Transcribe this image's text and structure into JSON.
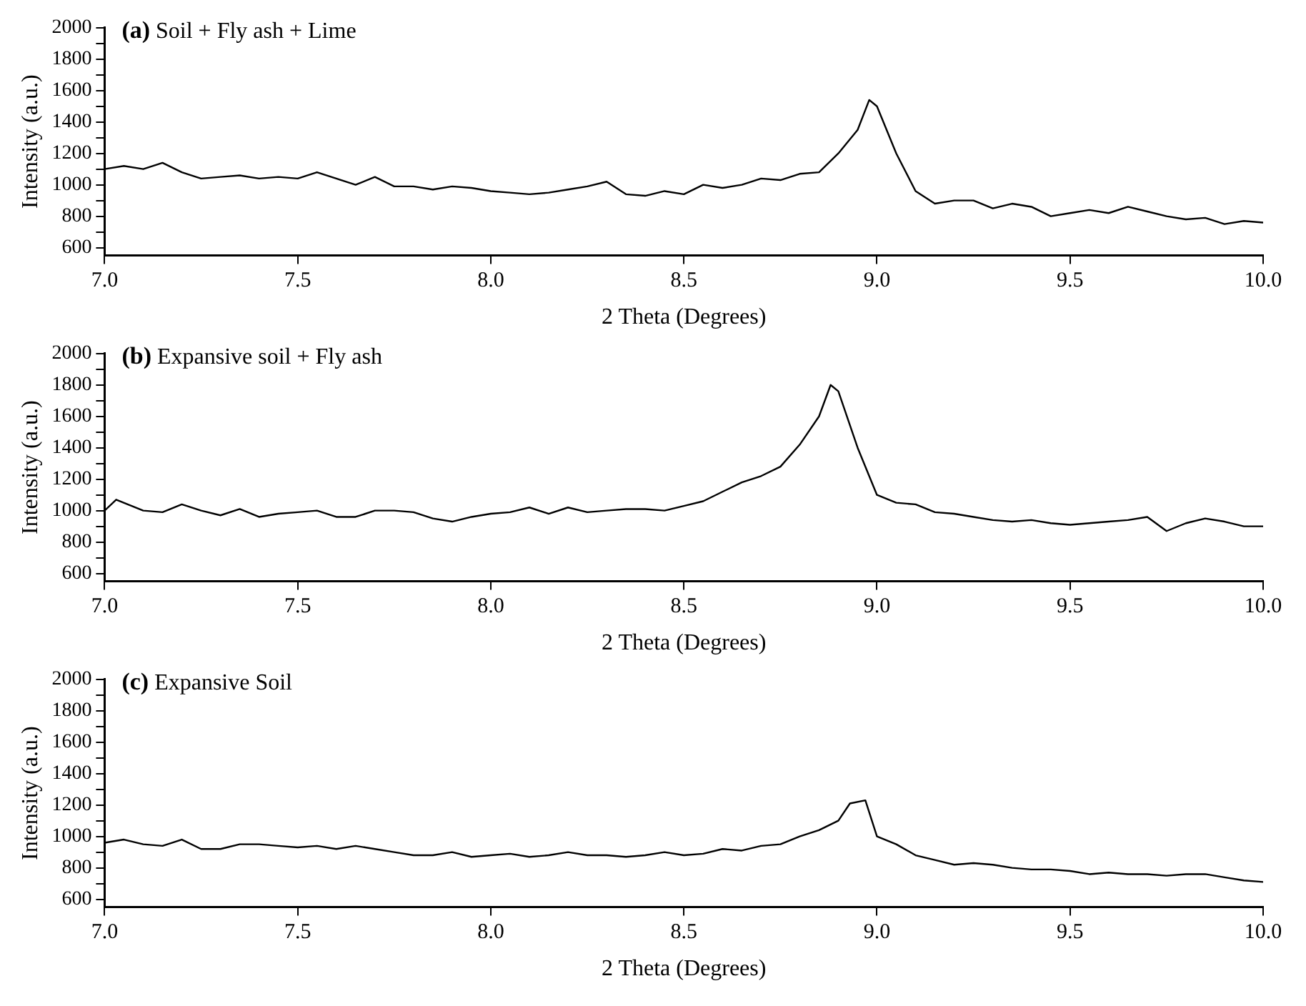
{
  "chart_data": [
    {
      "type": "line",
      "title": "(a) Soil + Fly ash + Lime",
      "xlabel": "2 Theta (Degrees)",
      "ylabel": "Intensity (a.u.)",
      "grid": false,
      "legend": false,
      "marker": "none",
      "line_style": "solid",
      "xlim": [
        7.0,
        10.0
      ],
      "xticks": [
        {
          "value": 7,
          "label": "7.0"
        },
        7.5,
        {
          "value": 8,
          "label": "8.0"
        },
        8.5,
        {
          "value": 9,
          "label": "9.0"
        },
        9.5,
        {
          "value": 10,
          "label": "10.0"
        }
      ],
      "ylim": [
        550,
        2000
      ],
      "yticks": [
        600,
        {
          "value": 700,
          "label": null
        },
        800,
        {
          "value": 900,
          "label": null
        },
        1000,
        {
          "value": 1100,
          "label": null
        },
        1200,
        {
          "value": 1300,
          "label": null
        },
        1400,
        {
          "value": 1500,
          "label": null
        },
        1600,
        {
          "value": 1700,
          "label": null
        },
        1800,
        {
          "value": 1900,
          "label": null
        },
        2000
      ],
      "series": [
        {
          "color": "#000000",
          "x": [
            7.0,
            7.05,
            7.1,
            7.15,
            7.2,
            7.25,
            7.3,
            7.35,
            7.4,
            7.45,
            7.5,
            7.55,
            7.6,
            7.65,
            7.7,
            7.75,
            7.8,
            7.85,
            7.9,
            7.95,
            8.0,
            8.05,
            8.1,
            8.15,
            8.2,
            8.25,
            8.3,
            8.35,
            8.4,
            8.45,
            8.5,
            8.55,
            8.6,
            8.65,
            8.7,
            8.75,
            8.8,
            8.85,
            8.9,
            8.95,
            8.98,
            9.0,
            9.05,
            9.1,
            9.15,
            9.2,
            9.25,
            9.3,
            9.35,
            9.4,
            9.45,
            9.5,
            9.55,
            9.6,
            9.65,
            9.7,
            9.75,
            9.8,
            9.85,
            9.9,
            9.95,
            10.0
          ],
          "values": [
            1100,
            1120,
            1100,
            1140,
            1080,
            1040,
            1050,
            1060,
            1040,
            1050,
            1040,
            1080,
            1040,
            1000,
            1050,
            990,
            990,
            970,
            990,
            980,
            960,
            950,
            940,
            950,
            970,
            990,
            1020,
            940,
            930,
            960,
            940,
            1000,
            980,
            1000,
            1040,
            1030,
            1070,
            1080,
            1200,
            1350,
            1540,
            1500,
            1200,
            960,
            880,
            900,
            900,
            850,
            880,
            860,
            800,
            820,
            840,
            820,
            860,
            830,
            800,
            780,
            790,
            750,
            770,
            760
          ]
        }
      ]
    },
    {
      "type": "line",
      "title": "(b) Expansive soil + Fly ash",
      "xlabel": "2 Theta (Degrees)",
      "ylabel": "Intensity (a.u.)",
      "grid": false,
      "legend": false,
      "marker": "none",
      "line_style": "solid",
      "xlim": [
        7.0,
        10.0
      ],
      "xticks": [
        {
          "value": 7,
          "label": "7.0"
        },
        7.5,
        {
          "value": 8,
          "label": "8.0"
        },
        8.5,
        {
          "value": 9,
          "label": "9.0"
        },
        9.5,
        {
          "value": 10,
          "label": "10.0"
        }
      ],
      "ylim": [
        550,
        2000
      ],
      "yticks": [
        600,
        {
          "value": 700,
          "label": null
        },
        800,
        {
          "value": 900,
          "label": null
        },
        1000,
        {
          "value": 1100,
          "label": null
        },
        1200,
        {
          "value": 1300,
          "label": null
        },
        1400,
        {
          "value": 1500,
          "label": null
        },
        1600,
        {
          "value": 1700,
          "label": null
        },
        1800,
        {
          "value": 1900,
          "label": null
        },
        2000
      ],
      "series": [
        {
          "color": "#000000",
          "x": [
            7.0,
            7.03,
            7.1,
            7.15,
            7.2,
            7.25,
            7.3,
            7.35,
            7.4,
            7.45,
            7.5,
            7.55,
            7.6,
            7.65,
            7.7,
            7.75,
            7.8,
            7.85,
            7.9,
            7.95,
            8.0,
            8.05,
            8.1,
            8.15,
            8.2,
            8.25,
            8.3,
            8.35,
            8.4,
            8.45,
            8.5,
            8.55,
            8.6,
            8.65,
            8.7,
            8.75,
            8.8,
            8.85,
            8.88,
            8.9,
            8.95,
            9.0,
            9.05,
            9.1,
            9.15,
            9.2,
            9.25,
            9.3,
            9.35,
            9.4,
            9.45,
            9.5,
            9.55,
            9.6,
            9.65,
            9.7,
            9.75,
            9.8,
            9.85,
            9.9,
            9.95,
            10.0
          ],
          "values": [
            1000,
            1070,
            1000,
            990,
            1040,
            1000,
            970,
            1010,
            960,
            980,
            990,
            1000,
            960,
            960,
            1000,
            1000,
            990,
            950,
            930,
            960,
            980,
            990,
            1020,
            980,
            1020,
            990,
            1000,
            1010,
            1010,
            1000,
            1030,
            1060,
            1120,
            1180,
            1220,
            1280,
            1420,
            1600,
            1800,
            1760,
            1400,
            1100,
            1050,
            1040,
            990,
            980,
            960,
            940,
            930,
            940,
            920,
            910,
            920,
            930,
            940,
            960,
            870,
            920,
            950,
            930,
            900,
            900
          ]
        }
      ]
    },
    {
      "type": "line",
      "title": "(c) Expansive Soil",
      "xlabel": "2 Theta (Degrees)",
      "ylabel": "Intensity (a.u.)",
      "grid": false,
      "legend": false,
      "marker": "none",
      "line_style": "solid",
      "xlim": [
        7.0,
        10.0
      ],
      "xticks": [
        {
          "value": 7,
          "label": "7.0"
        },
        7.5,
        {
          "value": 8,
          "label": "8.0"
        },
        8.5,
        {
          "value": 9,
          "label": "9.0"
        },
        9.5,
        {
          "value": 10,
          "label": "10.0"
        }
      ],
      "ylim": [
        550,
        2000
      ],
      "yticks": [
        600,
        {
          "value": 700,
          "label": null
        },
        800,
        {
          "value": 900,
          "label": null
        },
        1000,
        {
          "value": 1100,
          "label": null
        },
        1200,
        {
          "value": 1300,
          "label": null
        },
        1400,
        {
          "value": 1500,
          "label": null
        },
        1600,
        {
          "value": 1700,
          "label": null
        },
        1800,
        {
          "value": 1900,
          "label": null
        },
        2000
      ],
      "series": [
        {
          "color": "#000000",
          "x": [
            7.0,
            7.05,
            7.1,
            7.15,
            7.2,
            7.25,
            7.3,
            7.35,
            7.4,
            7.45,
            7.5,
            7.55,
            7.6,
            7.65,
            7.7,
            7.75,
            7.8,
            7.85,
            7.9,
            7.95,
            8.0,
            8.05,
            8.1,
            8.15,
            8.2,
            8.25,
            8.3,
            8.35,
            8.4,
            8.45,
            8.5,
            8.55,
            8.6,
            8.65,
            8.7,
            8.75,
            8.8,
            8.85,
            8.9,
            8.93,
            8.97,
            9.0,
            9.05,
            9.1,
            9.15,
            9.2,
            9.25,
            9.3,
            9.35,
            9.4,
            9.45,
            9.5,
            9.55,
            9.6,
            9.65,
            9.7,
            9.75,
            9.8,
            9.85,
            9.9,
            9.95,
            10.0
          ],
          "values": [
            960,
            980,
            950,
            940,
            980,
            920,
            920,
            950,
            950,
            940,
            930,
            940,
            920,
            940,
            920,
            900,
            880,
            880,
            900,
            870,
            880,
            890,
            870,
            880,
            900,
            880,
            880,
            870,
            880,
            900,
            880,
            890,
            920,
            910,
            940,
            950,
            1000,
            1040,
            1100,
            1210,
            1230,
            1000,
            950,
            880,
            850,
            820,
            830,
            820,
            800,
            790,
            790,
            780,
            760,
            770,
            760,
            760,
            750,
            760,
            760,
            740,
            720,
            710
          ]
        }
      ]
    }
  ]
}
